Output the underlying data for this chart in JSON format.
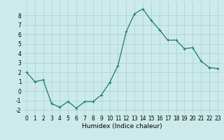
{
  "x": [
    0,
    1,
    2,
    3,
    4,
    5,
    6,
    7,
    8,
    9,
    10,
    11,
    12,
    13,
    14,
    15,
    16,
    17,
    18,
    19,
    20,
    21,
    22,
    23
  ],
  "y": [
    2.0,
    1.0,
    1.2,
    -1.3,
    -1.7,
    -1.1,
    -1.8,
    -1.1,
    -1.1,
    -0.4,
    0.9,
    2.7,
    6.3,
    8.2,
    8.7,
    7.5,
    6.5,
    5.4,
    5.4,
    4.5,
    4.6,
    3.2,
    2.5,
    2.4
  ],
  "line_color": "#1a7a6e",
  "marker": "+",
  "marker_size": 3,
  "bg_color": "#cceaea",
  "grid_color": "#aacfcf",
  "xlabel": "Humidex (Indice chaleur)",
  "ylim": [
    -2.5,
    9.5
  ],
  "xlim": [
    -0.5,
    23.5
  ],
  "yticks": [
    -2,
    -1,
    0,
    1,
    2,
    3,
    4,
    5,
    6,
    7,
    8
  ],
  "xtick_labels": [
    "0",
    "1",
    "2",
    "3",
    "4",
    "5",
    "6",
    "7",
    "8",
    "9",
    "10",
    "11",
    "12",
    "13",
    "14",
    "15",
    "16",
    "17",
    "18",
    "19",
    "20",
    "21",
    "22",
    "23"
  ],
  "tick_fontsize": 5.5,
  "xlabel_fontsize": 6.5,
  "linewidth": 0.9,
  "markeredgewidth": 0.7
}
